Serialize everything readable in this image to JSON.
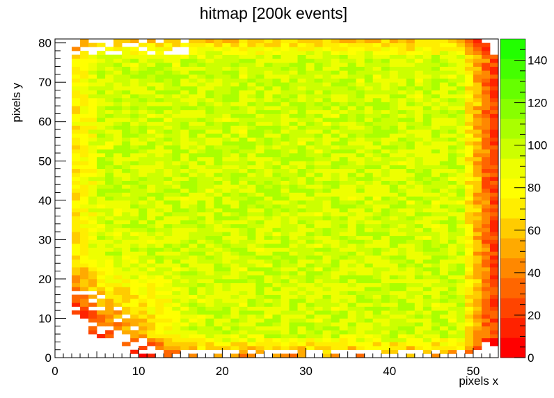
{
  "chart_data": {
    "type": "heatmap",
    "title": "hitmap [200k events]",
    "xlabel": "pixels x",
    "ylabel": "pixels y",
    "xlim": [
      0,
      53
    ],
    "ylim": [
      0,
      81
    ],
    "x_bins": 53,
    "y_bins": 81,
    "x_ticks": [
      "0",
      "10",
      "20",
      "30",
      "40",
      "50"
    ],
    "y_ticks": [
      "0",
      "10",
      "20",
      "30",
      "40",
      "50",
      "60",
      "70",
      "80"
    ],
    "zlim": [
      0,
      150
    ],
    "z_ticks": [
      "0",
      "20",
      "40",
      "60",
      "80",
      "100",
      "120",
      "140"
    ],
    "grid": false,
    "palette": [
      "#ff0000",
      "#ff2200",
      "#ff4400",
      "#ff6600",
      "#ff8800",
      "#ffaa00",
      "#ffcc00",
      "#ffee00",
      "#ffff00",
      "#eeff00",
      "#ccff00",
      "#aaff00",
      "#88ff00",
      "#66ff00",
      "#44ff00",
      "#22ff00"
    ],
    "data_description": "2D histogram of hit counts per pixel: ~90-110 in the center, falling to 20-50 near the right edge columns (x=50-53) and bottom rows, with sparse empty bins in the lower-left corner (x<17, y<25)."
  }
}
